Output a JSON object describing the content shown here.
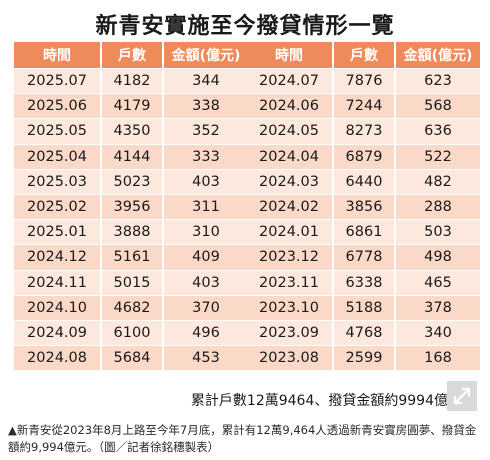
{
  "title": "新青安實施至今撥貸情形一覽",
  "headers": [
    "時間",
    "戶數",
    "金額(億元)"
  ],
  "left_rows": [
    [
      "2025.07",
      "4182",
      "344"
    ],
    [
      "2025.06",
      "4179",
      "338"
    ],
    [
      "2025.05",
      "4350",
      "352"
    ],
    [
      "2025.04",
      "4144",
      "333"
    ],
    [
      "2025.03",
      "5023",
      "403"
    ],
    [
      "2025.02",
      "3956",
      "311"
    ],
    [
      "2025.01",
      "3888",
      "310"
    ],
    [
      "2024.12",
      "5161",
      "409"
    ],
    [
      "2024.11",
      "5015",
      "403"
    ],
    [
      "2024.10",
      "4682",
      "370"
    ],
    [
      "2024.09",
      "6100",
      "496"
    ],
    [
      "2024.08",
      "5684",
      "453"
    ]
  ],
  "right_rows": [
    [
      "2024.07",
      "7876",
      "623"
    ],
    [
      "2024.06",
      "7244",
      "568"
    ],
    [
      "2024.05",
      "8273",
      "636"
    ],
    [
      "2024.04",
      "6879",
      "522"
    ],
    [
      "2024.03",
      "6440",
      "482"
    ],
    [
      "2024.02",
      "3856",
      "288"
    ],
    [
      "2024.01",
      "6861",
      "503"
    ],
    [
      "2023.12",
      "6778",
      "498"
    ],
    [
      "2023.11",
      "6338",
      "465"
    ],
    [
      "2023.10",
      "5188",
      "378"
    ],
    [
      "2023.09",
      "4768",
      "340"
    ],
    [
      "2023.08",
      "2599",
      "168"
    ]
  ],
  "total": "累計戶數12萬9464、撥貸金額約9994億元",
  "caption": "▲新青安從2023年8月上路至今年7月底，累計有12萬9,464人透過新青安實房圓夢、撥貸金額約9,994億元。（圖／記者徐銘穗製表）",
  "expand_icon": "expand-arrow-icon",
  "colors": {
    "header_bg": "#ef8a5a",
    "row_light": "#fde8dd",
    "row_dark": "#fbd9c8"
  }
}
